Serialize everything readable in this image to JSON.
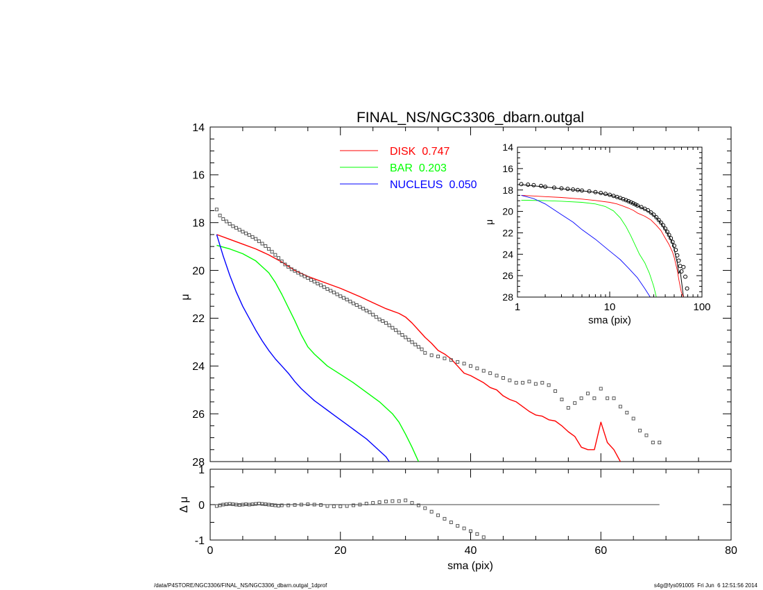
{
  "chart_data": [
    {
      "type": "line",
      "title": "FINAL_NS/NGC3306_dbarn.outgal",
      "xlabel": "",
      "ylabel": "μ",
      "xlim": [
        0,
        80
      ],
      "ylim": [
        28,
        14
      ],
      "y_inverted": true,
      "y_ticks": [
        14,
        16,
        18,
        20,
        22,
        24,
        26,
        28
      ],
      "x_ticks": [
        0,
        20,
        40,
        60,
        80
      ],
      "legend_position": "top-center",
      "series": [
        {
          "name": "DISK",
          "legend_label": "DISK",
          "fraction": "0.747",
          "color": "#ff0000",
          "x": [
            1,
            3,
            5,
            7,
            9,
            11,
            13,
            15,
            17,
            20,
            23,
            25,
            27,
            29,
            30,
            31,
            32,
            33,
            34,
            35,
            36,
            37,
            38,
            39,
            40,
            41,
            42,
            43,
            44,
            45,
            46,
            47,
            48,
            49,
            50,
            51,
            52,
            53,
            54,
            55,
            56,
            57,
            58,
            59,
            60,
            61,
            62,
            63
          ],
          "y": [
            18.5,
            18.7,
            18.9,
            19.1,
            19.35,
            19.65,
            20.0,
            20.25,
            20.45,
            20.75,
            21.1,
            21.35,
            21.6,
            21.8,
            21.95,
            22.2,
            22.5,
            22.8,
            23.05,
            23.35,
            23.5,
            23.7,
            24.0,
            24.3,
            24.4,
            24.55,
            24.7,
            24.9,
            25.0,
            25.25,
            25.4,
            25.5,
            25.7,
            25.9,
            26.05,
            26.1,
            26.25,
            26.3,
            26.5,
            26.75,
            26.95,
            27.4,
            27.5,
            27.5,
            26.35,
            27.2,
            27.5,
            28.0
          ]
        },
        {
          "name": "BAR",
          "legend_label": "BAR",
          "fraction": "0.203",
          "color": "#00ff00",
          "x": [
            1,
            3,
            5,
            7,
            8,
            9,
            10,
            11,
            12,
            13,
            14,
            15,
            16,
            17,
            18,
            20,
            22,
            24,
            26,
            28,
            29,
            30,
            31,
            31.5,
            32
          ],
          "y": [
            18.95,
            19.1,
            19.3,
            19.6,
            19.85,
            20.1,
            20.5,
            21.0,
            21.55,
            22.1,
            22.7,
            23.2,
            23.5,
            23.75,
            24.0,
            24.35,
            24.7,
            25.1,
            25.5,
            26.0,
            26.35,
            26.85,
            27.4,
            27.7,
            28.0
          ]
        },
        {
          "name": "NUCLEUS",
          "legend_label": "NUCLEUS",
          "fraction": "0.050",
          "color": "#0000ff",
          "x": [
            1,
            2,
            3,
            4,
            5,
            6,
            7,
            8,
            9,
            10,
            11,
            12,
            13,
            14,
            15,
            16,
            17,
            18,
            19,
            20,
            21,
            22,
            23,
            24,
            25,
            26,
            27,
            27.5
          ],
          "y": [
            18.5,
            19.4,
            20.2,
            20.9,
            21.5,
            22.0,
            22.5,
            22.95,
            23.35,
            23.7,
            24.0,
            24.3,
            24.65,
            24.95,
            25.2,
            25.45,
            25.65,
            25.85,
            26.05,
            26.25,
            26.45,
            26.65,
            26.85,
            27.05,
            27.3,
            27.55,
            27.8,
            28.0
          ]
        },
        {
          "name": "",
          "style": "squares",
          "color": "#555555",
          "x": [
            1,
            1.5,
            2,
            2.5,
            3,
            3.5,
            4,
            4.5,
            5,
            5.5,
            6,
            6.5,
            7,
            7.5,
            8,
            8.5,
            9,
            9.5,
            10,
            10.5,
            11,
            11.5,
            12,
            12.5,
            13,
            13.5,
            14,
            14.5,
            15,
            15.5,
            16,
            16.5,
            17,
            17.5,
            18,
            18.5,
            19,
            19.5,
            20,
            20.5,
            21,
            21.5,
            22,
            22.5,
            23,
            23.5,
            24,
            24.5,
            25,
            25.5,
            26,
            26.5,
            27,
            27.5,
            28,
            28.5,
            29,
            29.5,
            30,
            30.5,
            31,
            31.5,
            32,
            32.5,
            33,
            34,
            35,
            36,
            37,
            38,
            39,
            40,
            41,
            42,
            43,
            44,
            45,
            46,
            47,
            48,
            49,
            50,
            51,
            52,
            53,
            54,
            55,
            56,
            57,
            58,
            59,
            60,
            61,
            62,
            63,
            64,
            65,
            66,
            67,
            68,
            69
          ],
          "y": [
            17.45,
            17.7,
            17.85,
            17.95,
            18.05,
            18.15,
            18.22,
            18.3,
            18.38,
            18.45,
            18.52,
            18.6,
            18.68,
            18.78,
            18.88,
            18.98,
            19.1,
            19.22,
            19.35,
            19.48,
            19.62,
            19.75,
            19.85,
            19.95,
            20.02,
            20.1,
            20.18,
            20.25,
            20.32,
            20.4,
            20.47,
            20.55,
            20.62,
            20.7,
            20.78,
            20.85,
            20.92,
            21.0,
            21.08,
            21.15,
            21.22,
            21.3,
            21.38,
            21.45,
            21.53,
            21.6,
            21.68,
            21.75,
            21.85,
            21.95,
            22.05,
            22.12,
            22.2,
            22.3,
            22.4,
            22.5,
            22.6,
            22.7,
            22.8,
            22.9,
            23.0,
            23.1,
            23.2,
            23.3,
            23.45,
            23.55,
            23.6,
            23.68,
            23.75,
            23.83,
            23.9,
            24.0,
            24.1,
            24.2,
            24.3,
            24.4,
            24.5,
            24.6,
            24.7,
            24.7,
            24.65,
            24.75,
            24.7,
            24.8,
            25.05,
            25.4,
            25.75,
            25.55,
            25.35,
            25.15,
            25.35,
            24.95,
            25.35,
            25.35,
            25.7,
            25.95,
            26.2,
            26.7,
            26.9,
            27.2,
            27.2
          ]
        }
      ]
    },
    {
      "type": "line",
      "title": "",
      "xlabel": "sma (pix)",
      "ylabel": "Δ μ",
      "xlim": [
        0,
        80
      ],
      "ylim": [
        -1,
        1
      ],
      "y_ticks": [
        -1,
        0,
        1
      ],
      "x_ticks": [
        0,
        20,
        40,
        60,
        80
      ],
      "reference_line": {
        "y": 0,
        "x": [
          1,
          69
        ]
      },
      "series": [
        {
          "name": "",
          "style": "squares",
          "color": "#555555",
          "x": [
            1,
            1.5,
            2,
            2.5,
            3,
            3.5,
            4,
            4.5,
            5,
            5.5,
            6,
            6.5,
            7,
            7.5,
            8,
            8.5,
            9,
            9.5,
            10,
            10.5,
            11,
            12,
            13,
            14,
            15,
            16,
            17,
            18,
            19,
            20,
            21,
            22,
            23,
            24,
            25,
            26,
            27,
            28,
            29,
            30,
            31,
            32,
            33,
            34,
            35,
            36,
            37,
            38,
            39,
            40,
            41,
            42,
            43
          ],
          "y": [
            -0.04,
            -0.02,
            0.0,
            0.01,
            0.02,
            0.01,
            0.0,
            -0.01,
            0.0,
            0.01,
            0.0,
            0.01,
            0.02,
            0.03,
            0.02,
            0.01,
            0.0,
            -0.01,
            -0.02,
            -0.03,
            -0.02,
            -0.02,
            -0.01,
            0.0,
            0.01,
            0.0,
            -0.01,
            -0.04,
            -0.05,
            -0.05,
            -0.04,
            -0.02,
            0.0,
            0.03,
            0.05,
            0.07,
            0.09,
            0.1,
            0.1,
            0.12,
            0.05,
            -0.02,
            -0.1,
            -0.2,
            -0.3,
            -0.4,
            -0.5,
            -0.6,
            -0.67,
            -0.75,
            -0.83,
            -0.92,
            -1.05
          ]
        }
      ]
    },
    {
      "type": "line",
      "title": "",
      "xlabel": "sma (pix)",
      "ylabel": "μ",
      "x_scale": "log",
      "xlim": [
        1,
        100
      ],
      "ylim": [
        28,
        14
      ],
      "y_inverted": true,
      "y_ticks": [
        14,
        16,
        18,
        20,
        22,
        24,
        26,
        28
      ],
      "x_ticks": [
        1,
        10,
        100
      ],
      "series": [
        {
          "name": "",
          "style": "circles",
          "color": "#000000",
          "x": [
            1.1,
            1.3,
            1.5,
            1.8,
            2.0,
            2.5,
            3.0,
            3.5,
            4.0,
            4.5,
            5,
            6,
            7,
            8,
            9,
            10,
            11,
            12,
            13,
            14,
            15,
            16,
            17,
            18,
            19,
            20,
            22,
            24,
            26,
            28,
            30,
            32,
            34,
            36,
            38,
            40,
            42,
            44,
            46,
            48,
            50,
            52,
            54,
            56,
            58,
            60,
            63,
            66,
            69
          ],
          "y": [
            17.45,
            17.5,
            17.55,
            17.62,
            17.7,
            17.78,
            17.85,
            17.9,
            17.95,
            18.0,
            18.05,
            18.12,
            18.2,
            18.28,
            18.36,
            18.45,
            18.55,
            18.65,
            18.75,
            18.85,
            18.95,
            19.05,
            19.15,
            19.25,
            19.35,
            19.45,
            19.6,
            19.75,
            19.9,
            20.1,
            20.3,
            20.55,
            20.8,
            21.05,
            21.3,
            21.6,
            21.9,
            22.2,
            22.5,
            22.85,
            23.2,
            23.6,
            24.1,
            24.6,
            25.1,
            25.6,
            25.2,
            26.1,
            27.2
          ]
        },
        {
          "name": "",
          "color": "#000000",
          "x": [
            1.1,
            2,
            3,
            5,
            7,
            10,
            12,
            14,
            16,
            18,
            20,
            24,
            28,
            32,
            36,
            40,
            44,
            48,
            50,
            52,
            54,
            56,
            58,
            60,
            63
          ],
          "y": [
            17.5,
            17.72,
            17.88,
            18.08,
            18.22,
            18.48,
            18.68,
            18.88,
            19.08,
            19.28,
            19.48,
            19.8,
            20.15,
            20.6,
            21.1,
            21.7,
            22.3,
            23.0,
            23.5,
            24.2,
            24.8,
            25.8,
            25.5,
            26.5,
            28.0
          ]
        },
        {
          "name": "DISK",
          "color": "#ff0000",
          "x": [
            1.1,
            2,
            3,
            5,
            7,
            10,
            12,
            14,
            16,
            18,
            20,
            24,
            28,
            32,
            36,
            40,
            44,
            48,
            50,
            52,
            54,
            56,
            58,
            60,
            63
          ],
          "y": [
            18.5,
            18.62,
            18.7,
            18.85,
            18.98,
            19.15,
            19.3,
            19.5,
            19.7,
            19.9,
            20.15,
            20.45,
            20.8,
            21.3,
            21.8,
            22.5,
            23.1,
            23.8,
            24.3,
            24.9,
            25.5,
            26.3,
            27.0,
            27.6,
            28.0
          ]
        },
        {
          "name": "BAR",
          "color": "#00ff00",
          "x": [
            1.1,
            2,
            3,
            5,
            7,
            9,
            11,
            13,
            15,
            17,
            19,
            21,
            24,
            27,
            30,
            32
          ],
          "y": [
            18.95,
            19.0,
            19.05,
            19.15,
            19.3,
            19.55,
            19.95,
            20.6,
            21.4,
            22.3,
            23.2,
            24.0,
            24.8,
            25.8,
            27.0,
            28.0
          ]
        },
        {
          "name": "NUCLEUS",
          "color": "#0000ff",
          "x": [
            1.1,
            1.5,
            2,
            3,
            4,
            5,
            7,
            10,
            13,
            16,
            20,
            24,
            27.5
          ],
          "y": [
            18.5,
            18.8,
            19.3,
            20.3,
            21.0,
            21.7,
            22.6,
            23.7,
            24.5,
            25.3,
            26.2,
            27.2,
            28.0
          ]
        }
      ]
    }
  ],
  "footer": {
    "left": "/data/P4STORE/NGC3306/FINAL_NS/NGC3306_dbarn.outgal_1dprof",
    "right": "s4g@fys091005  Fri Jun  6 12:51:56 2014"
  }
}
